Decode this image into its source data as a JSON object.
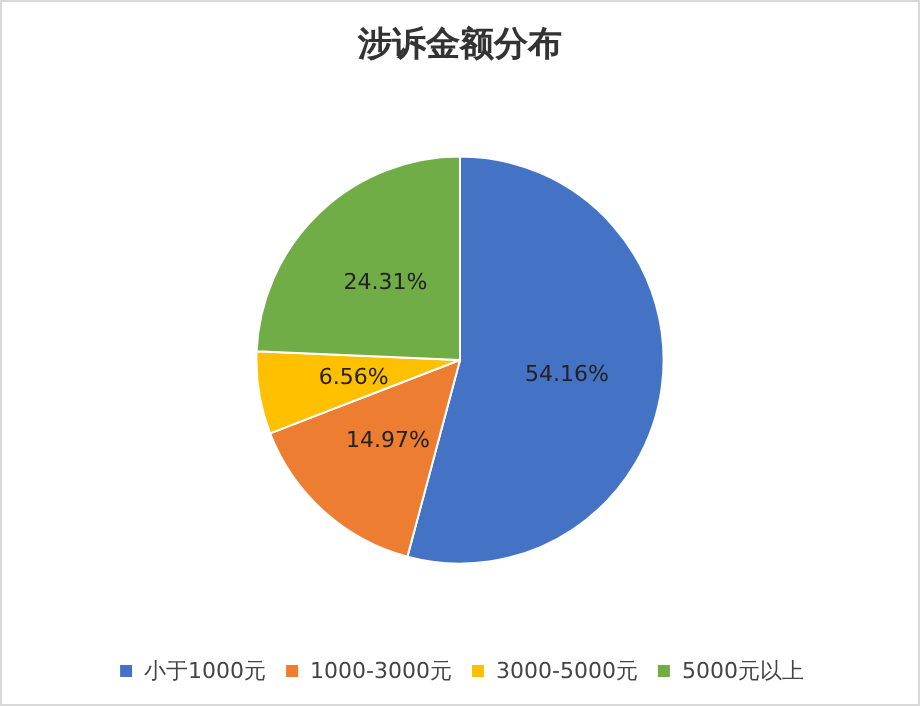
{
  "chart_data": {
    "type": "pie",
    "title": "涉诉金额分布",
    "categories": [
      "小于1000元",
      "1000-3000元",
      "3000-5000元",
      "5000元以上"
    ],
    "values": [
      54.16,
      14.97,
      6.56,
      24.31
    ],
    "value_labels": [
      "54.16%",
      "14.97%",
      "6.56%",
      "24.31%"
    ],
    "colors": [
      "#4472c4",
      "#ed7d31",
      "#ffc000",
      "#70ad47"
    ],
    "legend": "bottom"
  }
}
